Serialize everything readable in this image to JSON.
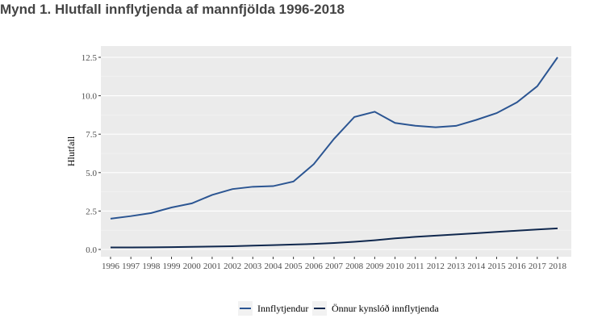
{
  "title": "Mynd 1. Hlutfall innflytjenda af mannfjöldа 1996-2018",
  "chart_data": {
    "type": "line",
    "title": "Mynd 1. Hlutfall innflytjenda af mannfjölda 1996-2018",
    "xlabel": "",
    "ylabel": "Hlutfall",
    "x": [
      1996,
      1997,
      1998,
      1999,
      2000,
      2001,
      2002,
      2003,
      2004,
      2005,
      2006,
      2007,
      2008,
      2009,
      2010,
      2011,
      2012,
      2013,
      2014,
      2015,
      2016,
      2017,
      2018
    ],
    "ylim": [
      0,
      12.5
    ],
    "yticks": [
      "0.0",
      "2.5",
      "5.0",
      "7.5",
      "10.0",
      "12.5"
    ],
    "grid": true,
    "legend_position": "bottom",
    "series": [
      {
        "name": "Innflytjendur",
        "color": "#2b5592",
        "values": [
          2.0,
          2.17,
          2.37,
          2.73,
          3.0,
          3.55,
          3.93,
          4.08,
          4.12,
          4.42,
          5.55,
          7.2,
          8.62,
          8.96,
          8.23,
          8.05,
          7.95,
          8.04,
          8.43,
          8.87,
          9.57,
          10.62,
          12.5
        ]
      },
      {
        "name": "Önnur kynslóð innflytjenda",
        "color": "#10284e",
        "values": [
          0.13,
          0.13,
          0.14,
          0.15,
          0.17,
          0.19,
          0.21,
          0.25,
          0.28,
          0.32,
          0.36,
          0.42,
          0.5,
          0.6,
          0.72,
          0.82,
          0.9,
          0.98,
          1.06,
          1.14,
          1.22,
          1.3,
          1.37
        ]
      }
    ]
  }
}
